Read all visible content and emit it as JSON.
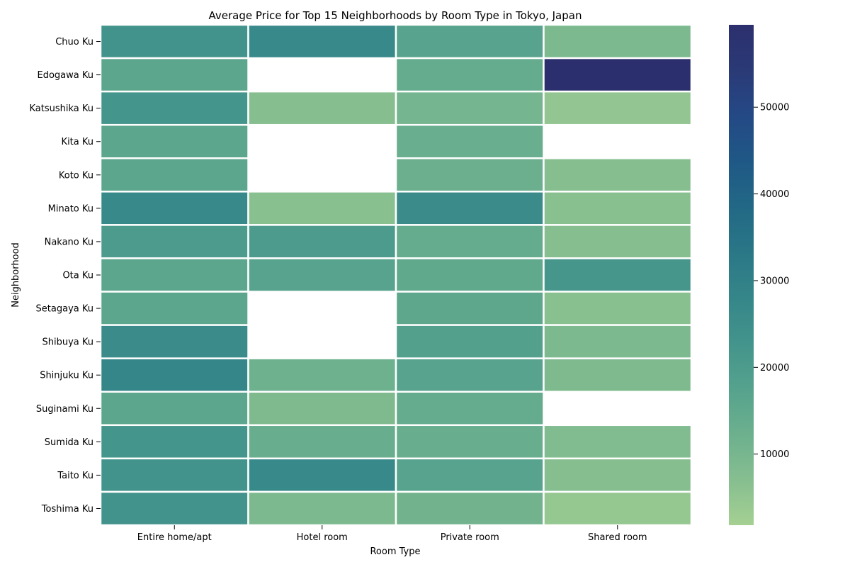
{
  "chart_data": {
    "type": "heatmap",
    "title": "Average Price for Top 15 Neighborhoods by Room Type in Tokyo, Japan",
    "xlabel": "Room Type",
    "ylabel": "Neighborhood",
    "x_categories": [
      "Entire home/apt",
      "Hotel room",
      "Private room",
      "Shared room"
    ],
    "y_categories": [
      "Chuo Ku",
      "Edogawa Ku",
      "Katsushika Ku",
      "Kita Ku",
      "Koto Ku",
      "Minato Ku",
      "Nakano Ku",
      "Ota Ku",
      "Setagaya Ku",
      "Shibuya Ku",
      "Shinjuku Ku",
      "Suginami Ku",
      "Sumida Ku",
      "Taito Ku",
      "Toshima Ku"
    ],
    "values": [
      [
        23000,
        27000,
        17000,
        9000
      ],
      [
        16000,
        null,
        14000,
        59500
      ],
      [
        22500,
        7000,
        10500,
        5000
      ],
      [
        16000,
        null,
        13000,
        null
      ],
      [
        16000,
        null,
        12500,
        7000
      ],
      [
        27000,
        6500,
        26000,
        6500
      ],
      [
        20000,
        20000,
        14000,
        7000
      ],
      [
        16000,
        17000,
        15000,
        22000
      ],
      [
        16000,
        null,
        15500,
        6500
      ],
      [
        26000,
        null,
        18000,
        9000
      ],
      [
        28000,
        12000,
        17000,
        8500
      ],
      [
        16000,
        8500,
        14000,
        null
      ],
      [
        22500,
        13500,
        13500,
        8000
      ],
      [
        23000,
        27000,
        17000,
        7000
      ],
      [
        23000,
        9000,
        11000,
        4500
      ]
    ],
    "colorbar": {
      "vmin": 1800,
      "vmax": 59500,
      "ticks": [
        10000,
        20000,
        30000,
        40000,
        50000
      ],
      "tick_labels": [
        "10000",
        "20000",
        "30000",
        "40000",
        "50000"
      ],
      "colormap": "crest",
      "stops": [
        "#a5d092",
        "#86be90",
        "#6cb08e",
        "#55a28d",
        "#43948c",
        "#358689",
        "#2a7787",
        "#226886",
        "#1f5886",
        "#244985",
        "#2a3a77",
        "#2c2f6d"
      ]
    },
    "cell_gap_color": "#ffffff",
    "grid": false
  }
}
